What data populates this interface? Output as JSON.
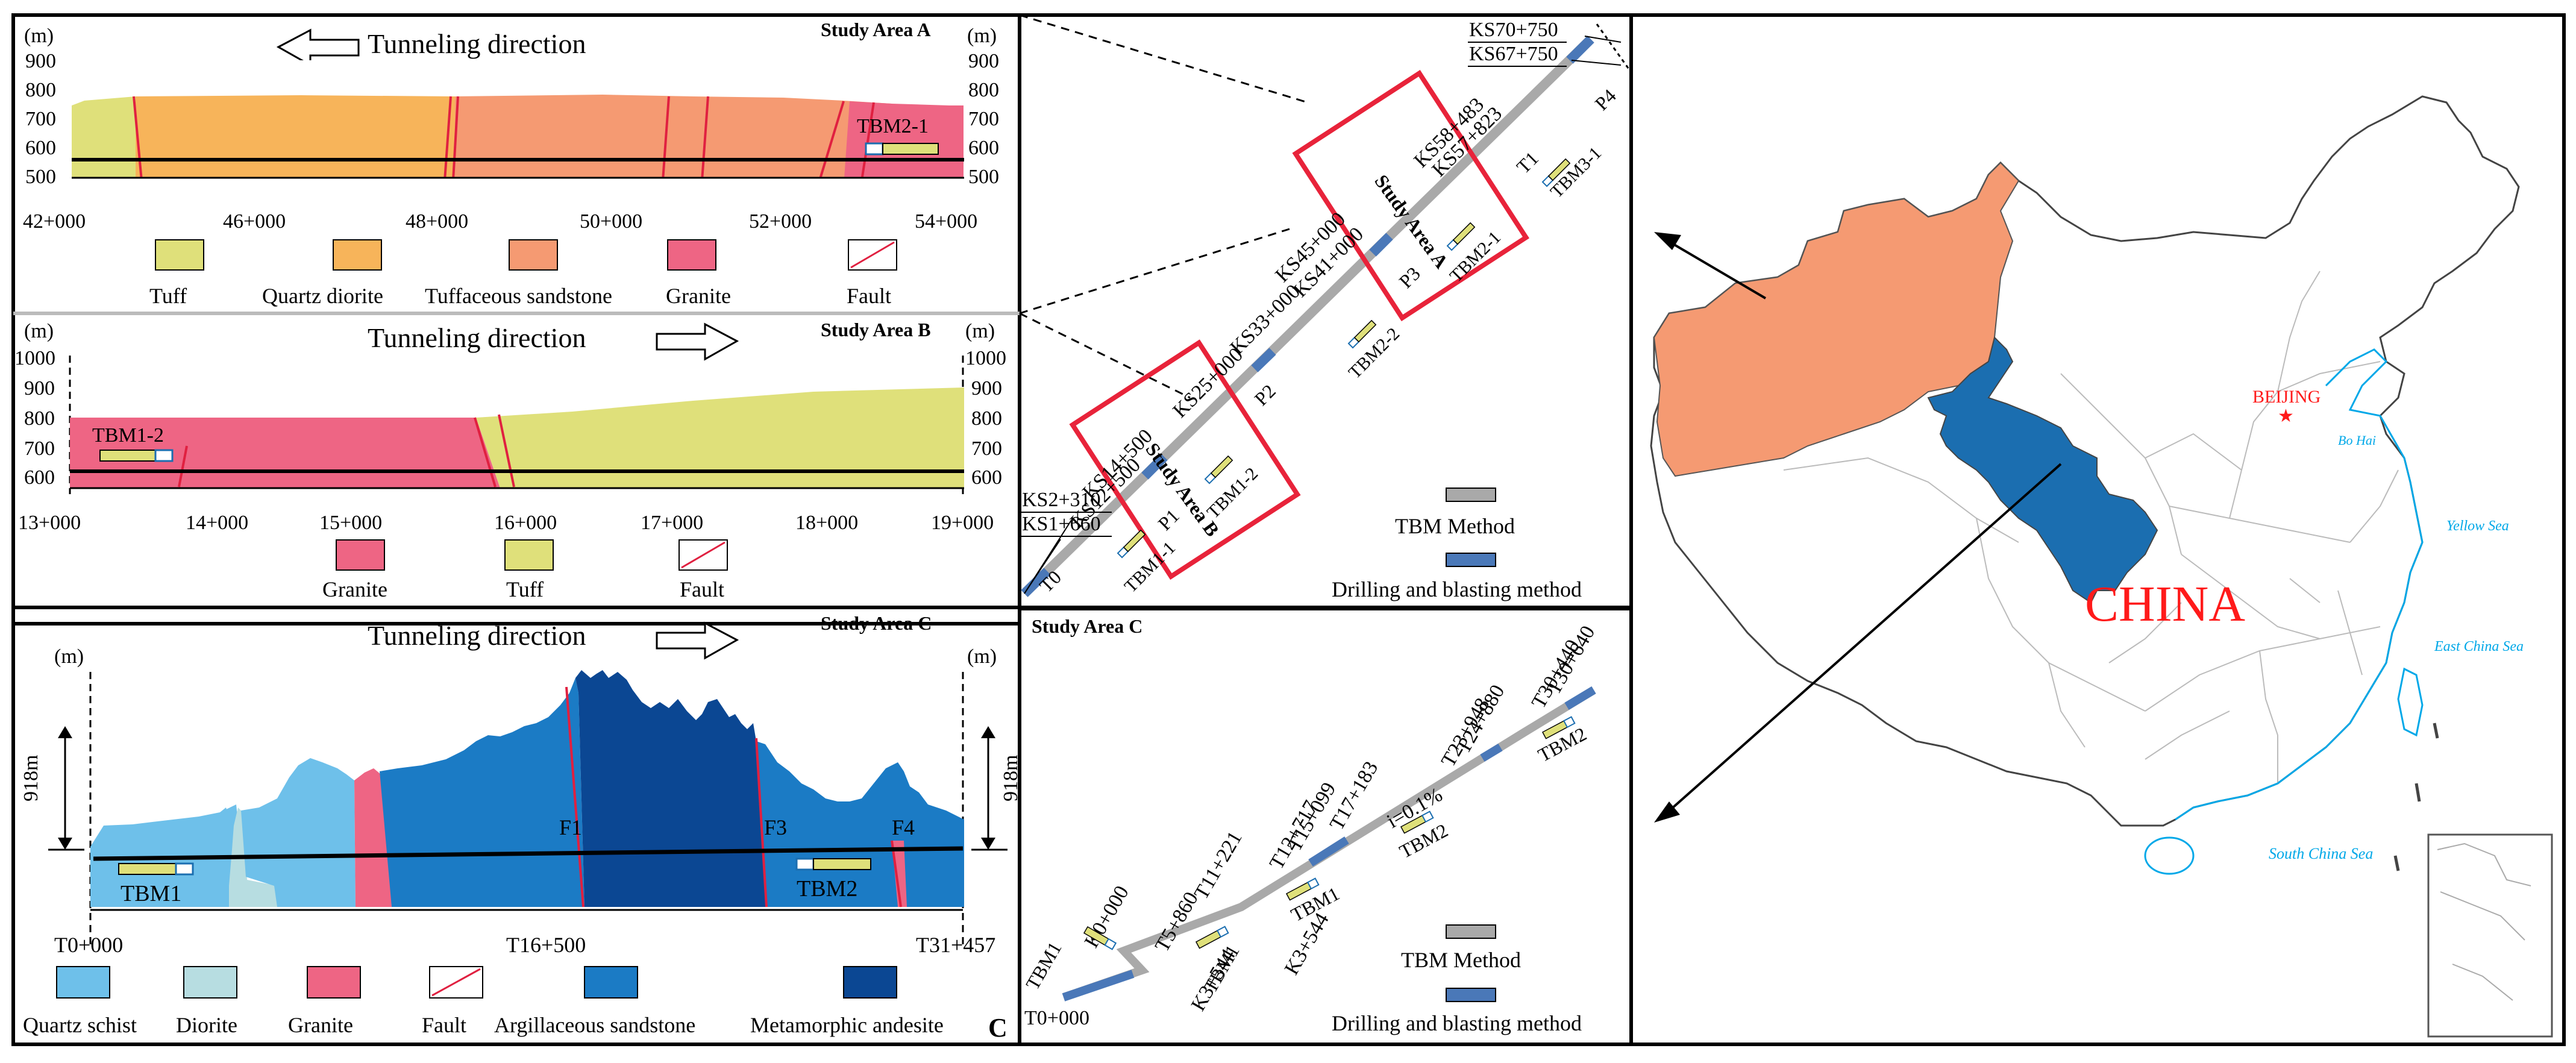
{
  "colors": {
    "tuff": "#dfe07a",
    "quartz_diorite": "#f7b45a",
    "tuffaceous_sandstone": "#f59a72",
    "granite": "#ee6584",
    "quartz_schist": "#6ec0ea",
    "diorite": "#b7dde1",
    "argillaceous_sandstone": "#1b7bc5",
    "metamorphic_andesite": "#0b4793",
    "tbm_line": "#a9a9a9",
    "dbm_line": "#4a78b8",
    "frame_red": "#e8233a",
    "region_orange": "#f59a72",
    "region_blue": "#1b6eb0",
    "sea": "#00a8e8"
  },
  "panel_a": {
    "unit": "(m)",
    "title": "Study Area A",
    "direction_label": "Tunneling direction",
    "y_ticks": [
      "900",
      "800",
      "700",
      "600",
      "500"
    ],
    "x_ticks": [
      "42+000",
      "46+000",
      "48+000",
      "50+000",
      "52+000",
      "54+000"
    ],
    "tbm_label": "TBM2-1",
    "legend": [
      "Tuff",
      "Quartz diorite",
      "Tuffaceous sandstone",
      "Granite",
      "Fault"
    ]
  },
  "panel_b": {
    "unit": "(m)",
    "title": "Study Area B",
    "direction_label": "Tunneling direction",
    "y_ticks": [
      "1000",
      "900",
      "800",
      "700",
      "600"
    ],
    "x_ticks": [
      "13+000",
      "14+000",
      "15+000",
      "16+000",
      "17+000",
      "18+000",
      "19+000"
    ],
    "tbm_label": "TBM1-2",
    "legend": [
      "Granite",
      "Tuff",
      "Fault"
    ]
  },
  "panel_c": {
    "unit": "(m)",
    "title": "Study Area C",
    "direction_label": "Tunneling direction",
    "height_label": "918m",
    "x_ticks": [
      "T0+000",
      "T16+500",
      "T31+457"
    ],
    "faults": [
      "F1",
      "F3",
      "F4"
    ],
    "tbm_labels": [
      "TBM1",
      "TBM2"
    ],
    "legend": [
      "Quartz schist",
      "Diorite",
      "Granite",
      "Fault",
      "Argillaceous sandstone",
      "Metamorphic andesite"
    ],
    "letter": "C"
  },
  "route_ab": {
    "chainages": [
      "KS70+750",
      "KS67+750",
      "KS58+483",
      "KS57+823",
      "KS45+000",
      "KS41+000",
      "KS33+000",
      "KS25+000",
      "KS14+500",
      "KS12+500",
      "KS2+310",
      "KS1+660"
    ],
    "sections": [
      "T0",
      "P1",
      "P2",
      "P3",
      "P4",
      "T1"
    ],
    "tbms": [
      "TBM1-1",
      "TBM1-2",
      "TBM2-2",
      "TBM2-1",
      "TBM3-1"
    ],
    "study_areas": [
      "Study Area A",
      "Study Area B"
    ],
    "legend": [
      "TBM Method",
      "Drilling and blasting method"
    ]
  },
  "route_c": {
    "title": "Study Area C",
    "chainages": [
      "K0+000",
      "T5+860",
      "K3+544",
      "K3+544",
      "T11+221",
      "T12+717",
      "T15+099",
      "T17+183",
      "T23+948",
      "T24+880",
      "T30+440",
      "T30+640",
      "T0+000"
    ],
    "slope": "i=0.1%",
    "tbms": [
      "TBM1",
      "TBM1",
      "TBM1",
      "TBM2",
      "TBM2"
    ],
    "legend": [
      "TBM Method",
      "Drilling and blasting method"
    ]
  },
  "map": {
    "country": "CHINA",
    "capital": "BEIJING",
    "seas": [
      "Bo Hai",
      "Yellow Sea",
      "East China Sea",
      "South China Sea"
    ]
  }
}
